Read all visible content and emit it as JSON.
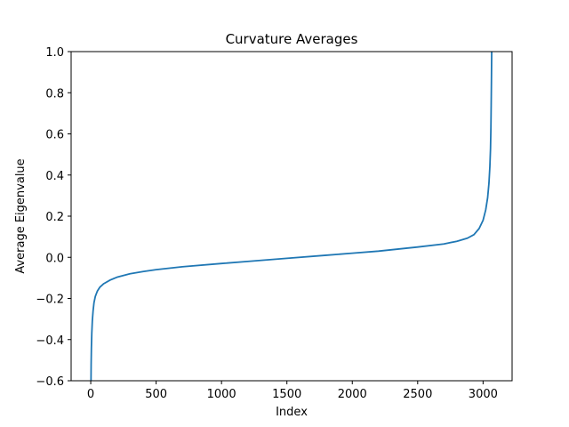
{
  "chart_data": {
    "type": "line",
    "title": "Curvature Averages",
    "xlabel": "Index",
    "ylabel": "Average Eigenvalue",
    "xlim": [
      -150,
      3222
    ],
    "ylim": [
      -0.6,
      1.0
    ],
    "x_ticks": [
      0,
      500,
      1000,
      1500,
      2000,
      2500,
      3000
    ],
    "y_ticks": [
      -0.6,
      -0.4,
      -0.2,
      0.0,
      0.2,
      0.4,
      0.6,
      0.8,
      1.0
    ],
    "x_tick_labels": [
      "0",
      "500",
      "1000",
      "1500",
      "2000",
      "2500",
      "3000"
    ],
    "y_tick_labels": [
      "−0.6",
      "−0.4",
      "−0.2",
      "0.0",
      "0.2",
      "0.4",
      "0.6",
      "0.8",
      "1.0"
    ],
    "grid": false,
    "legend": "none",
    "series": [
      {
        "color": "#1f77b4",
        "x": [
          2,
          3,
          5,
          8,
          12,
          18,
          25,
          35,
          50,
          70,
          100,
          150,
          200,
          300,
          400,
          500,
          700,
          1000,
          1200,
          1500,
          1800,
          2000,
          2200,
          2500,
          2700,
          2800,
          2880,
          2930,
          2970,
          3000,
          3020,
          3035,
          3045,
          3052,
          3057,
          3060,
          3062,
          3064,
          3066
        ],
        "y": [
          -0.6,
          -0.52,
          -0.44,
          -0.37,
          -0.31,
          -0.26,
          -0.22,
          -0.19,
          -0.165,
          -0.145,
          -0.128,
          -0.11,
          -0.097,
          -0.08,
          -0.069,
          -0.06,
          -0.046,
          -0.03,
          -0.02,
          -0.005,
          0.01,
          0.02,
          0.03,
          0.05,
          0.065,
          0.078,
          0.093,
          0.11,
          0.14,
          0.18,
          0.23,
          0.29,
          0.36,
          0.44,
          0.53,
          0.63,
          0.74,
          0.86,
          1.0
        ]
      }
    ]
  }
}
